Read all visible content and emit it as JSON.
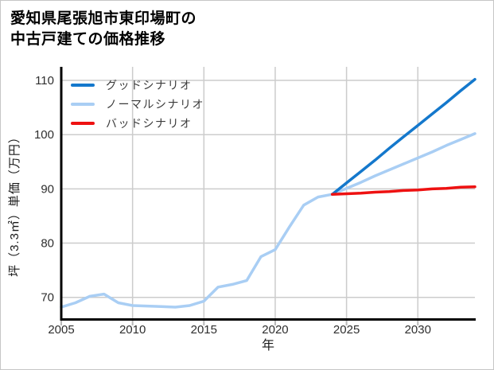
{
  "title": {
    "line1": "愛知県尾張旭市東印場町の",
    "line2": "中古戸建ての価格推移"
  },
  "colors": {
    "good": "#1478cc",
    "normal": "#a9cef4",
    "bad": "#ee1111",
    "grid": "#cccccc",
    "spine": "#000000",
    "tick": "#b8b8b8",
    "tick_label": "#2e2e2e",
    "axis_label": "#1a1a1a",
    "legend_text": "#3a3a3a",
    "background": "#ffffff"
  },
  "chart_data": {
    "type": "line",
    "title": "愛知県尾張旭市東印場町の中古戸建ての価格推移",
    "xlabel": "年",
    "ylabel": "坪（3.3㎡）単価（万円）",
    "xlim": [
      2005,
      2034
    ],
    "ylim": [
      66,
      112.5
    ],
    "xticks": [
      2005,
      2010,
      2015,
      2020,
      2025,
      2030
    ],
    "yticks": [
      70,
      80,
      90,
      100,
      110
    ],
    "grid": true,
    "legend_position": "upper-left-inside",
    "series": [
      {
        "name": "グッドシナリオ",
        "key": "good",
        "color": "#1478cc",
        "x": [
          2024,
          2025,
          2026,
          2027,
          2028,
          2029,
          2030,
          2031,
          2032,
          2033,
          2034
        ],
        "y": [
          89.0,
          91.1,
          93.2,
          95.3,
          97.5,
          99.6,
          101.7,
          103.8,
          105.9,
          108.1,
          110.2
        ]
      },
      {
        "name": "ノーマルシナリオ",
        "key": "normal",
        "color": "#a9cef4",
        "x": [
          2005,
          2006,
          2007,
          2008,
          2009,
          2010,
          2011,
          2012,
          2013,
          2014,
          2015,
          2016,
          2017,
          2018,
          2019,
          2020,
          2021,
          2022,
          2023,
          2024,
          2025,
          2026,
          2027,
          2028,
          2029,
          2030,
          2031,
          2032,
          2033,
          2034
        ],
        "y": [
          68.2,
          69.0,
          70.2,
          70.6,
          69.0,
          68.5,
          68.4,
          68.3,
          68.2,
          68.5,
          69.3,
          71.9,
          72.4,
          73.1,
          77.5,
          78.8,
          83.0,
          87.0,
          88.5,
          89.0,
          90.1,
          91.2,
          92.4,
          93.5,
          94.6,
          95.7,
          96.8,
          98.0,
          99.1,
          100.2
        ]
      },
      {
        "name": "バッドシナリオ",
        "key": "bad",
        "color": "#ee1111",
        "x": [
          2024,
          2025,
          2026,
          2027,
          2028,
          2029,
          2030,
          2031,
          2032,
          2033,
          2034
        ],
        "y": [
          89.0,
          89.1,
          89.2,
          89.4,
          89.5,
          89.7,
          89.8,
          90.0,
          90.1,
          90.3,
          90.4
        ]
      }
    ]
  }
}
